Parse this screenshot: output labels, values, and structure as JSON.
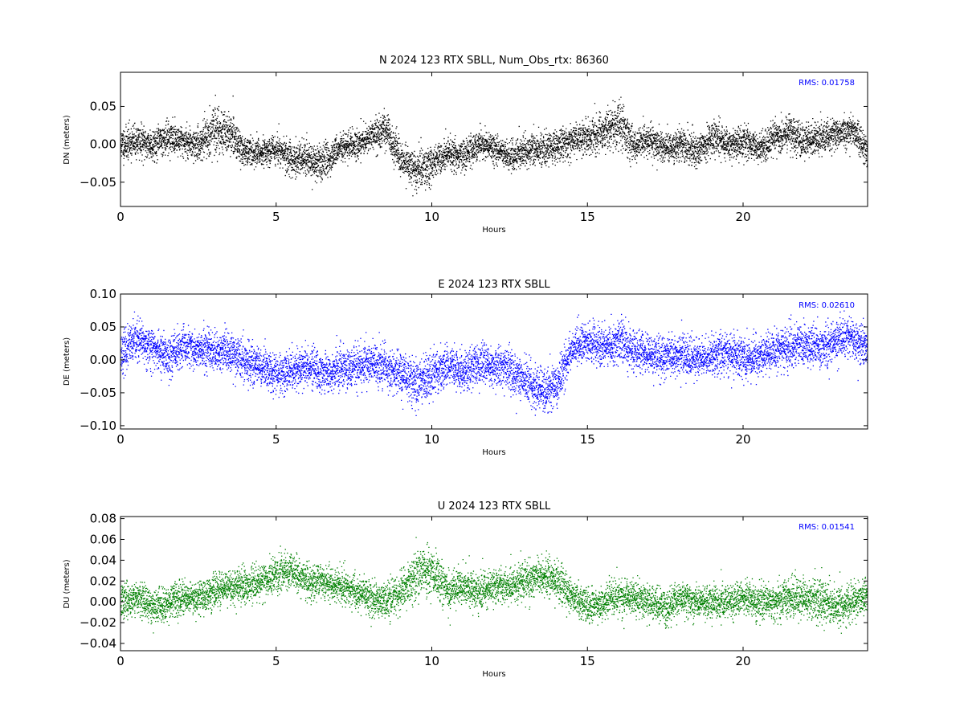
{
  "chart_data": [
    {
      "type": "scatter",
      "title": "N 2024 123 RTX  SBLL, Num_Obs_rtx: 86360",
      "xlabel": "Hours",
      "ylabel": "DN (meters)",
      "xlim": [
        0,
        24
      ],
      "ylim": [
        -0.082,
        0.095
      ],
      "xticks": [
        0,
        5,
        10,
        15,
        20
      ],
      "yticks": [
        -0.05,
        0.0,
        0.05
      ],
      "ytick_labels": [
        "−0.05",
        "0.00",
        "0.05"
      ],
      "color": "#000000",
      "rms_label": "RMS:  0.01758",
      "n_obs": 86360,
      "series": [
        {
          "x": [
            0,
            0.5,
            1,
            1.5,
            2,
            2.5,
            3,
            3.5,
            4,
            4.5,
            5,
            5.5,
            6,
            6.5,
            7,
            7.5,
            8,
            8.5,
            9,
            9.5,
            10,
            10.5,
            11,
            11.5,
            12,
            12.5,
            13,
            13.5,
            14,
            14.5,
            15,
            15.5,
            16,
            16.5,
            17,
            17.5,
            18,
            18.5,
            19,
            19.5,
            20,
            20.5,
            21,
            21.5,
            22,
            22.5,
            23,
            23.5,
            24
          ],
          "y": [
            0.0,
            0.005,
            0.0,
            0.01,
            0.005,
            0.0,
            0.02,
            0.015,
            -0.01,
            -0.01,
            -0.005,
            -0.02,
            -0.02,
            -0.025,
            -0.005,
            0.0,
            0.01,
            0.02,
            -0.02,
            -0.035,
            -0.025,
            -0.01,
            -0.015,
            0.0,
            -0.005,
            -0.015,
            -0.01,
            -0.005,
            0.0,
            0.005,
            0.01,
            0.015,
            0.03,
            0.0,
            0.005,
            -0.005,
            0.0,
            -0.01,
            0.01,
            0.0,
            0.005,
            -0.005,
            0.01,
            0.015,
            0.005,
            0.01,
            0.015,
            0.02,
            -0.01
          ],
          "spread": [
            0.022,
            0.022,
            0.02,
            0.02,
            0.02,
            0.02,
            0.03,
            0.025,
            0.018,
            0.018,
            0.018,
            0.022,
            0.024,
            0.022,
            0.018,
            0.018,
            0.018,
            0.022,
            0.024,
            0.025,
            0.024,
            0.02,
            0.02,
            0.02,
            0.02,
            0.02,
            0.02,
            0.02,
            0.02,
            0.02,
            0.024,
            0.025,
            0.03,
            0.02,
            0.02,
            0.02,
            0.022,
            0.02,
            0.022,
            0.02,
            0.02,
            0.02,
            0.022,
            0.024,
            0.022,
            0.022,
            0.02,
            0.022,
            0.022
          ]
        }
      ]
    },
    {
      "type": "scatter",
      "title": "E 2024 123 RTX  SBLL",
      "xlabel": "Hours",
      "ylabel": "DE (meters)",
      "xlim": [
        0,
        24
      ],
      "ylim": [
        -0.105,
        0.1
      ],
      "xticks": [
        0,
        5,
        10,
        15,
        20
      ],
      "yticks": [
        -0.1,
        -0.05,
        0.0,
        0.05,
        0.1
      ],
      "ytick_labels": [
        "−0.10",
        "−0.05",
        "0.00",
        "0.05",
        "0.10"
      ],
      "color": "#0000ff",
      "rms_label": "RMS:  0.02610",
      "series": [
        {
          "x": [
            0,
            0.5,
            1,
            1.5,
            2,
            2.5,
            3,
            3.5,
            4,
            4.5,
            5,
            5.5,
            6,
            6.5,
            7,
            7.5,
            8,
            8.5,
            9,
            9.5,
            10,
            10.5,
            11,
            11.5,
            12,
            12.5,
            13,
            13.5,
            14,
            14.5,
            15,
            15.5,
            16,
            16.5,
            17,
            17.5,
            18,
            18.5,
            19,
            19.5,
            20,
            20.5,
            21,
            21.5,
            22,
            22.5,
            23,
            23.5,
            24
          ],
          "y": [
            0.01,
            0.03,
            0.02,
            0.005,
            0.02,
            0.015,
            0.01,
            0.015,
            -0.005,
            -0.01,
            -0.02,
            -0.015,
            -0.01,
            -0.02,
            -0.015,
            -0.01,
            -0.005,
            -0.01,
            -0.02,
            -0.035,
            -0.02,
            -0.01,
            -0.015,
            -0.005,
            -0.01,
            -0.015,
            -0.03,
            -0.05,
            -0.035,
            0.02,
            0.025,
            0.02,
            0.03,
            0.015,
            0.01,
            0.005,
            0.01,
            0.0,
            0.005,
            0.01,
            0.005,
            0.005,
            0.015,
            0.02,
            0.025,
            0.02,
            0.03,
            0.035,
            0.02
          ],
          "spread": [
            0.03,
            0.03,
            0.03,
            0.03,
            0.03,
            0.03,
            0.03,
            0.03,
            0.03,
            0.03,
            0.03,
            0.03,
            0.03,
            0.03,
            0.03,
            0.03,
            0.03,
            0.03,
            0.032,
            0.035,
            0.03,
            0.03,
            0.03,
            0.03,
            0.03,
            0.03,
            0.03,
            0.035,
            0.035,
            0.03,
            0.03,
            0.03,
            0.032,
            0.03,
            0.03,
            0.03,
            0.03,
            0.03,
            0.03,
            0.03,
            0.03,
            0.03,
            0.03,
            0.03,
            0.03,
            0.03,
            0.03,
            0.03,
            0.03
          ]
        }
      ]
    },
    {
      "type": "scatter",
      "title": "U 2024 123 RTX  SBLL",
      "xlabel": "Hours",
      "ylabel": "DU (meters)",
      "xlim": [
        0,
        24
      ],
      "ylim": [
        -0.047,
        0.082
      ],
      "xticks": [
        0,
        5,
        10,
        15,
        20
      ],
      "yticks": [
        -0.04,
        -0.02,
        0.0,
        0.02,
        0.04,
        0.06,
        0.08
      ],
      "ytick_labels": [
        "−0.04",
        "−0.02",
        "0.00",
        "0.02",
        "0.04",
        "0.06",
        "0.08"
      ],
      "color": "#008000",
      "rms_label": "RMS:  0.01541",
      "series": [
        {
          "x": [
            0,
            0.5,
            1,
            1.5,
            2,
            2.5,
            3,
            3.5,
            4,
            4.5,
            5,
            5.5,
            6,
            6.5,
            7,
            7.5,
            8,
            8.5,
            9,
            9.5,
            10,
            10.5,
            11,
            11.5,
            12,
            12.5,
            13,
            13.5,
            14,
            14.5,
            15,
            15.5,
            16,
            16.5,
            17,
            17.5,
            18,
            18.5,
            19,
            19.5,
            20,
            20.5,
            21,
            21.5,
            22,
            22.5,
            23,
            23.5,
            24
          ],
          "y": [
            0.0,
            0.005,
            -0.005,
            0.0,
            0.005,
            0.005,
            0.01,
            0.015,
            0.015,
            0.02,
            0.025,
            0.03,
            0.02,
            0.02,
            0.015,
            0.01,
            0.005,
            0.0,
            0.01,
            0.025,
            0.03,
            0.01,
            0.015,
            0.01,
            0.015,
            0.015,
            0.02,
            0.025,
            0.02,
            0.005,
            -0.005,
            0.0,
            0.005,
            0.005,
            0.0,
            -0.005,
            0.005,
            0.0,
            0.0,
            0.0,
            0.005,
            0.0,
            0.0,
            0.005,
            0.005,
            0.0,
            -0.005,
            0.0,
            0.005
          ],
          "spread": [
            0.016,
            0.016,
            0.016,
            0.016,
            0.016,
            0.016,
            0.016,
            0.016,
            0.016,
            0.016,
            0.016,
            0.018,
            0.018,
            0.016,
            0.016,
            0.016,
            0.016,
            0.016,
            0.018,
            0.022,
            0.022,
            0.018,
            0.016,
            0.016,
            0.016,
            0.016,
            0.016,
            0.018,
            0.018,
            0.016,
            0.016,
            0.016,
            0.016,
            0.016,
            0.016,
            0.016,
            0.016,
            0.016,
            0.016,
            0.016,
            0.016,
            0.016,
            0.016,
            0.018,
            0.018,
            0.02,
            0.018,
            0.016,
            0.016
          ]
        }
      ]
    }
  ]
}
